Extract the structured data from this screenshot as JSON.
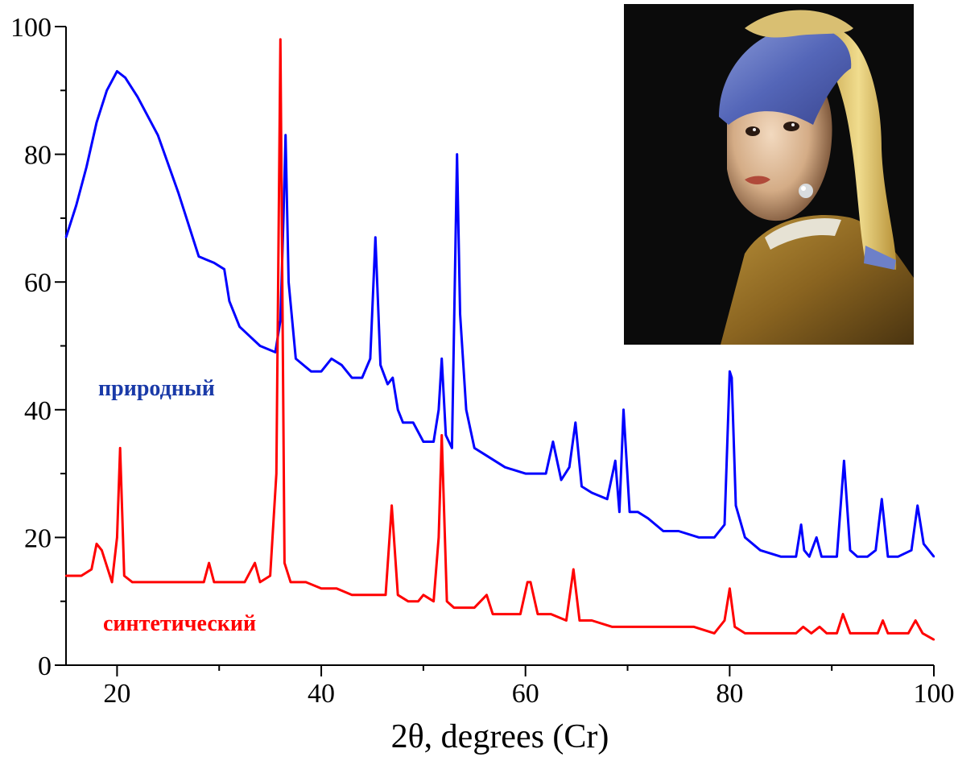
{
  "chart_data": {
    "type": "line",
    "title": "",
    "xlabel": "2θ, degrees (Cr)",
    "ylabel": "",
    "xlim": [
      15,
      100
    ],
    "ylim": [
      0,
      100
    ],
    "x_ticks": [
      20,
      40,
      60,
      80,
      100
    ],
    "y_ticks": [
      0,
      20,
      40,
      60,
      80,
      100
    ],
    "x_tick_labels": [
      "20",
      "40",
      "60",
      "80",
      "100"
    ],
    "y_tick_labels": [
      "0",
      "20",
      "40",
      "60",
      "80",
      "100"
    ],
    "grid": false,
    "legend": "inline labels",
    "series": [
      {
        "name": "природный",
        "color": "#0000ff",
        "label_color": "#1a3aa8",
        "x": [
          15.0,
          16.0,
          17.0,
          18.0,
          19.0,
          20.0,
          20.8,
          22.0,
          24.0,
          26.0,
          28.0,
          29.5,
          30.5,
          31.0,
          32.0,
          34.0,
          35.5,
          36.0,
          36.3,
          36.5,
          36.8,
          37.5,
          39.0,
          40.0,
          41.0,
          42.0,
          43.0,
          44.0,
          44.8,
          45.3,
          45.8,
          46.5,
          47.0,
          47.5,
          48.0,
          49.0,
          50.0,
          51.0,
          51.5,
          51.8,
          52.2,
          52.8,
          53.3,
          53.6,
          54.2,
          55.0,
          56.0,
          58.0,
          60.0,
          62.0,
          62.7,
          63.5,
          64.3,
          64.9,
          65.5,
          66.5,
          68.0,
          68.8,
          69.2,
          69.6,
          70.2,
          71.0,
          72.0,
          73.5,
          75.0,
          77.0,
          78.5,
          79.5,
          80.0,
          80.2,
          80.6,
          81.5,
          83.0,
          85.0,
          86.5,
          87.0,
          87.3,
          87.8,
          88.5,
          89.0,
          89.5,
          90.5,
          91.2,
          91.8,
          92.5,
          93.5,
          94.3,
          94.9,
          95.5,
          96.5,
          97.8,
          98.4,
          99.0,
          100.0
        ],
        "y": [
          67,
          72,
          78,
          85,
          90,
          93,
          92,
          89,
          83,
          74,
          64,
          63,
          62,
          57,
          53,
          50,
          49,
          54,
          70,
          83,
          60,
          48,
          46,
          46,
          48,
          47,
          45,
          45,
          48,
          67,
          47,
          44,
          45,
          40,
          38,
          38,
          35,
          35,
          40,
          48,
          36,
          34,
          80,
          55,
          40,
          34,
          33,
          31,
          30,
          30,
          35,
          29,
          31,
          38,
          28,
          27,
          26,
          32,
          24,
          40,
          24,
          24,
          23,
          21,
          21,
          20,
          20,
          22,
          46,
          45,
          25,
          20,
          18,
          17,
          17,
          22,
          18,
          17,
          20,
          17,
          17,
          17,
          32,
          18,
          17,
          17,
          18,
          26,
          17,
          17,
          18,
          25,
          19,
          17
        ]
      },
      {
        "name": "синтетический",
        "color": "#ff0000",
        "label_color": "#ff0000",
        "x": [
          15.0,
          16.5,
          17.5,
          18.0,
          18.5,
          19.5,
          20.0,
          20.3,
          20.7,
          21.5,
          23.0,
          26.0,
          28.5,
          29.0,
          29.5,
          30.5,
          32.5,
          33.5,
          34.0,
          35.0,
          35.6,
          36.0,
          36.4,
          37.0,
          38.5,
          40.0,
          41.5,
          43.0,
          44.5,
          46.3,
          46.9,
          47.5,
          48.5,
          49.5,
          50.0,
          51.0,
          51.5,
          51.8,
          52.3,
          53.0,
          55.0,
          56.2,
          56.8,
          58.0,
          59.5,
          60.2,
          60.5,
          61.2,
          62.5,
          64.0,
          64.7,
          65.3,
          66.5,
          68.5,
          70.5,
          72.5,
          74.5,
          76.5,
          78.5,
          79.5,
          80.0,
          80.5,
          81.5,
          84.0,
          86.5,
          87.2,
          88.0,
          88.8,
          89.5,
          90.5,
          91.1,
          91.8,
          93.0,
          94.5,
          95.0,
          95.5,
          97.5,
          98.2,
          98.9,
          100.0
        ],
        "y": [
          14,
          14,
          15,
          19,
          18,
          13,
          20,
          34,
          14,
          13,
          13,
          13,
          13,
          16,
          13,
          13,
          13,
          16,
          13,
          14,
          30,
          98,
          16,
          13,
          13,
          12,
          12,
          11,
          11,
          11,
          25,
          11,
          10,
          10,
          11,
          10,
          20,
          36,
          10,
          9,
          9,
          11,
          8,
          8,
          8,
          13,
          13,
          8,
          8,
          7,
          15,
          7,
          7,
          6,
          6,
          6,
          6,
          6,
          5,
          7,
          12,
          6,
          5,
          5,
          5,
          6,
          5,
          6,
          5,
          5,
          8,
          5,
          5,
          5,
          7,
          5,
          5,
          7,
          5,
          4
        ]
      }
    ]
  },
  "inset": {
    "description_icon": "portrait-painting"
  }
}
